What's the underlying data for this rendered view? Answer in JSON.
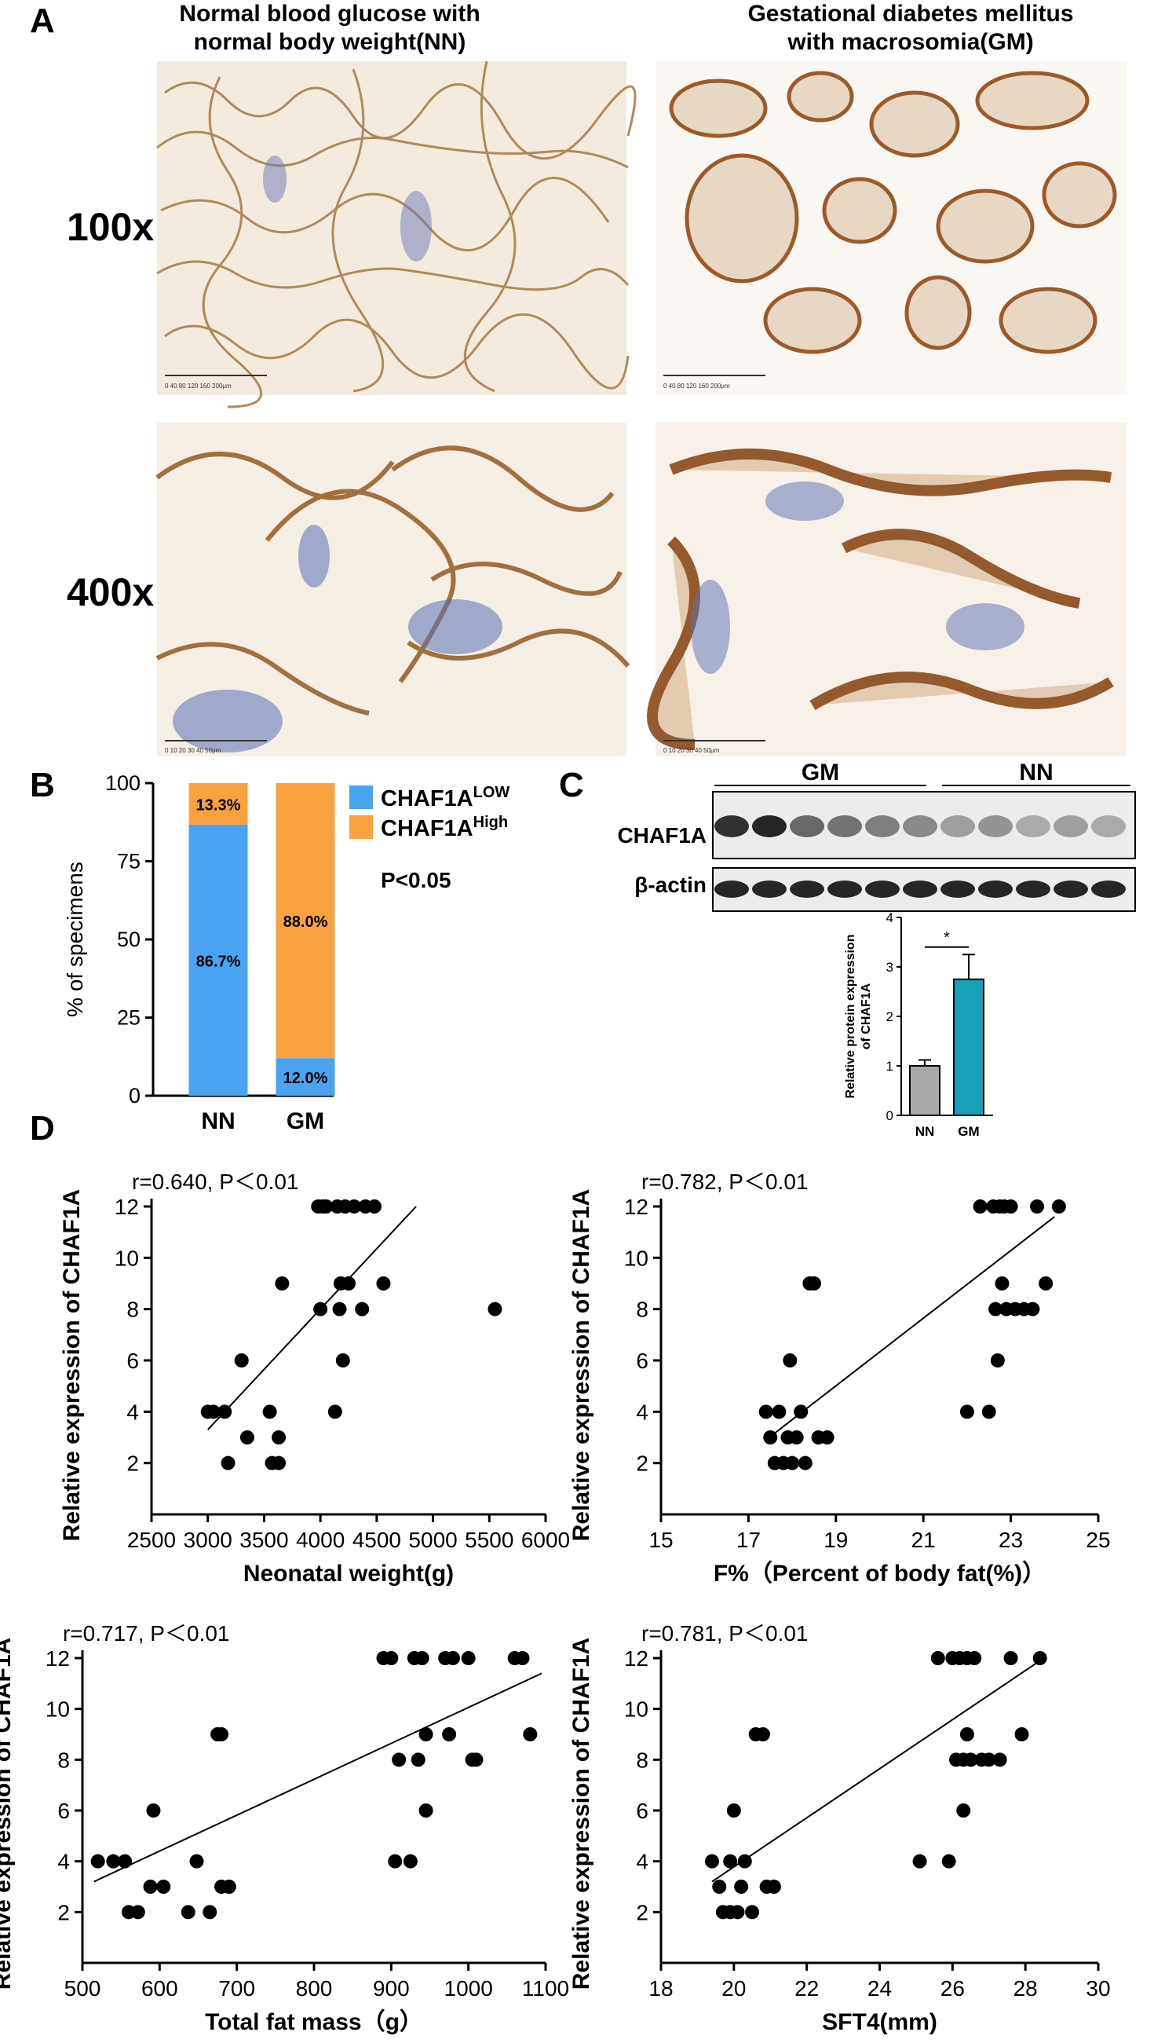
{
  "panel_a": {
    "letter": "A",
    "columns": [
      "Normal blood glucose with\nnormal body weight(NN)",
      "Gestational diabetes mellitus\nwith macrosomia(GM)"
    ],
    "rows": [
      "100x",
      "400x"
    ],
    "scalebar_100x": "0   40   80  120  160  200μm",
    "scalebar_400x": "0   10   20   30   40   50μm"
  },
  "panel_b": {
    "letter": "B"
  },
  "panel_c": {
    "letter": "C",
    "group_labels": [
      "GM",
      "NN"
    ],
    "blot_labels": [
      "CHAF1A",
      "β-actin"
    ]
  },
  "panel_d": {
    "letter": "D"
  },
  "chart_data": [
    {
      "type": "bar",
      "panel": "B",
      "categories": [
        "NN",
        "GM"
      ],
      "series": [
        {
          "name": "CHAF1A",
          "name_superscript": "LOW",
          "color": "#4aa3f0",
          "values": [
            86.7,
            12.0
          ],
          "labels": [
            "86.7%",
            "12.0%"
          ]
        },
        {
          "name": "CHAF1A",
          "name_superscript": "High",
          "color": "#f9a03f",
          "values": [
            13.3,
            88.0
          ],
          "labels": [
            "13.3%",
            "88.0%"
          ]
        }
      ],
      "ylabel": "% of specimens",
      "ylim": [
        0,
        100
      ],
      "yticks": [
        0,
        25,
        50,
        75,
        100
      ],
      "annotation": "P<0.05",
      "stacked": true,
      "legend": "right"
    },
    {
      "type": "bar",
      "panel": "C",
      "categories": [
        "NN",
        "GM"
      ],
      "values": [
        1.0,
        2.75
      ],
      "errors": [
        0.12,
        0.5
      ],
      "colors": [
        "#a8a8a8",
        "#1aa0b8"
      ],
      "ylabel": "Relative protein expression\nof CHAF1A",
      "ylim": [
        0,
        4
      ],
      "yticks": [
        0,
        1,
        2,
        3,
        4
      ],
      "significance": "*"
    },
    {
      "type": "scatter",
      "panel": "D1",
      "annotation": "r=0.640, P＜0.01",
      "xlabel": "Neonatal weight(g)",
      "ylabel": "Relative expression of CHAF1A",
      "xlim": [
        2500,
        6000
      ],
      "ylim": [
        0,
        12
      ],
      "xticks": [
        2500,
        3000,
        3500,
        4000,
        4500,
        5000,
        5500,
        6000
      ],
      "yticks": [
        2,
        4,
        6,
        8,
        10,
        12
      ],
      "points": [
        [
          3000,
          4
        ],
        [
          3050,
          4
        ],
        [
          3150,
          4
        ],
        [
          3180,
          2
        ],
        [
          3300,
          6
        ],
        [
          3350,
          3
        ],
        [
          3550,
          4
        ],
        [
          3570,
          2
        ],
        [
          3630,
          2
        ],
        [
          3630,
          3
        ],
        [
          3660,
          9
        ],
        [
          3980,
          12
        ],
        [
          4000,
          8
        ],
        [
          4020,
          12
        ],
        [
          4050,
          12
        ],
        [
          4130,
          4
        ],
        [
          4150,
          12
        ],
        [
          4170,
          8
        ],
        [
          4180,
          9
        ],
        [
          4200,
          6
        ],
        [
          4220,
          12
        ],
        [
          4250,
          9
        ],
        [
          4300,
          12
        ],
        [
          4370,
          8
        ],
        [
          4400,
          12
        ],
        [
          4480,
          12
        ],
        [
          4560,
          9
        ],
        [
          5550,
          8
        ]
      ],
      "fit": [
        [
          3000,
          3.3
        ],
        [
          4850,
          12
        ]
      ]
    },
    {
      "type": "scatter",
      "panel": "D2",
      "annotation": "r=0.782, P＜0.01",
      "xlabel": "F%（Percent of body fat(%)）",
      "ylabel": "Relative expression of CHAF1A",
      "xlim": [
        15,
        25
      ],
      "ylim": [
        0,
        12
      ],
      "xticks": [
        15,
        17,
        19,
        21,
        23,
        25
      ],
      "yticks": [
        2,
        4,
        6,
        8,
        10,
        12
      ],
      "points": [
        [
          17.4,
          4
        ],
        [
          17.5,
          3
        ],
        [
          17.6,
          2
        ],
        [
          17.7,
          4
        ],
        [
          17.8,
          2
        ],
        [
          17.9,
          3
        ],
        [
          17.95,
          6
        ],
        [
          18.0,
          2
        ],
        [
          18.1,
          3
        ],
        [
          18.2,
          4
        ],
        [
          18.3,
          2
        ],
        [
          18.4,
          9
        ],
        [
          18.5,
          9
        ],
        [
          18.6,
          3
        ],
        [
          18.8,
          3
        ],
        [
          22.0,
          4
        ],
        [
          22.3,
          12
        ],
        [
          22.5,
          4
        ],
        [
          22.6,
          12
        ],
        [
          22.65,
          8
        ],
        [
          22.7,
          6
        ],
        [
          22.75,
          12
        ],
        [
          22.8,
          9
        ],
        [
          22.85,
          12
        ],
        [
          22.9,
          8
        ],
        [
          23.0,
          12
        ],
        [
          23.1,
          8
        ],
        [
          23.3,
          8
        ],
        [
          23.5,
          8
        ],
        [
          23.6,
          12
        ],
        [
          23.8,
          9
        ],
        [
          24.1,
          12
        ]
      ],
      "fit": [
        [
          17.4,
          2.9
        ],
        [
          24.0,
          11.6
        ]
      ]
    },
    {
      "type": "scatter",
      "panel": "D3",
      "annotation": "r=0.717, P＜0.01",
      "xlabel": "Total fat mass（g）",
      "ylabel": "Relative expression of CHAF1A",
      "xlim": [
        500,
        1100
      ],
      "ylim": [
        0,
        12
      ],
      "xticks": [
        500,
        600,
        700,
        800,
        900,
        1000,
        1100
      ],
      "yticks": [
        2,
        4,
        6,
        8,
        10,
        12
      ],
      "points": [
        [
          520,
          4
        ],
        [
          540,
          4
        ],
        [
          555,
          4
        ],
        [
          560,
          2
        ],
        [
          572,
          2
        ],
        [
          588,
          3
        ],
        [
          592,
          6
        ],
        [
          605,
          3
        ],
        [
          637,
          2
        ],
        [
          648,
          4
        ],
        [
          665,
          2
        ],
        [
          675,
          9
        ],
        [
          680,
          9
        ],
        [
          680,
          3
        ],
        [
          690,
          3
        ],
        [
          890,
          12
        ],
        [
          900,
          12
        ],
        [
          905,
          4
        ],
        [
          910,
          8
        ],
        [
          925,
          4
        ],
        [
          930,
          12
        ],
        [
          935,
          8
        ],
        [
          940,
          12
        ],
        [
          945,
          9
        ],
        [
          945,
          6
        ],
        [
          970,
          12
        ],
        [
          975,
          9
        ],
        [
          980,
          12
        ],
        [
          1000,
          12
        ],
        [
          1005,
          8
        ],
        [
          1010,
          8
        ],
        [
          1060,
          12
        ],
        [
          1070,
          12
        ],
        [
          1080,
          9
        ]
      ],
      "fit": [
        [
          515,
          3.2
        ],
        [
          1095,
          11.4
        ]
      ]
    },
    {
      "type": "scatter",
      "panel": "D4",
      "annotation": "r=0.781, P＜0.01",
      "xlabel": "SFT4(mm)",
      "ylabel": "Relative expression of CHAF1A",
      "xlim": [
        18,
        30
      ],
      "ylim": [
        0,
        12
      ],
      "xticks": [
        18,
        20,
        22,
        24,
        26,
        28,
        30
      ],
      "yticks": [
        2,
        4,
        6,
        8,
        10,
        12
      ],
      "points": [
        [
          19.4,
          4
        ],
        [
          19.6,
          3
        ],
        [
          19.7,
          2
        ],
        [
          19.9,
          4
        ],
        [
          19.9,
          2
        ],
        [
          20.0,
          6
        ],
        [
          20.1,
          2
        ],
        [
          20.2,
          3
        ],
        [
          20.3,
          4
        ],
        [
          20.5,
          2
        ],
        [
          20.6,
          9
        ],
        [
          20.8,
          9
        ],
        [
          20.9,
          3
        ],
        [
          21.1,
          3
        ],
        [
          25.1,
          4
        ],
        [
          25.6,
          12
        ],
        [
          25.9,
          4
        ],
        [
          26.0,
          12
        ],
        [
          26.1,
          8
        ],
        [
          26.2,
          12
        ],
        [
          26.3,
          6
        ],
        [
          26.3,
          8
        ],
        [
          26.4,
          9
        ],
        [
          26.4,
          12
        ],
        [
          26.5,
          8
        ],
        [
          26.6,
          12
        ],
        [
          26.8,
          8
        ],
        [
          27.0,
          8
        ],
        [
          27.3,
          8
        ],
        [
          27.6,
          12
        ],
        [
          27.9,
          9
        ],
        [
          28.4,
          12
        ]
      ],
      "fit": [
        [
          19.4,
          3.2
        ],
        [
          28.3,
          11.8
        ]
      ]
    }
  ]
}
